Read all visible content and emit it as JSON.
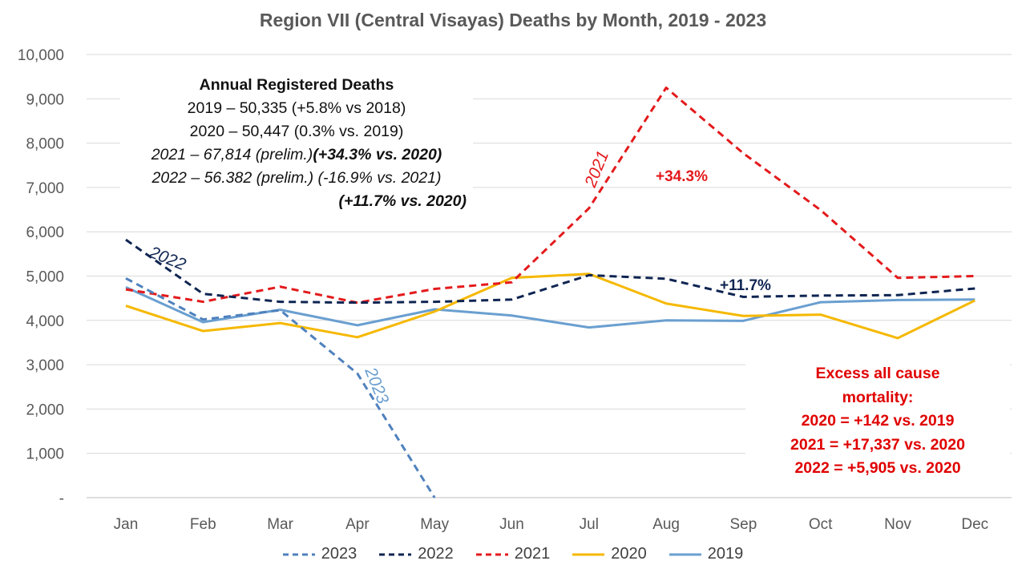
{
  "chart_data": {
    "type": "line",
    "title": "Region VII (Central Visayas) Deaths by Month, 2019 - 2023",
    "xlabel": "",
    "ylabel": "",
    "categories": [
      "Jan",
      "Feb",
      "Mar",
      "Apr",
      "May",
      "Jun",
      "Jul",
      "Aug",
      "Sep",
      "Oct",
      "Nov",
      "Dec"
    ],
    "y_ticks": [
      "-",
      "1,000",
      "2,000",
      "3,000",
      "4,000",
      "5,000",
      "6,000",
      "7,000",
      "8,000",
      "9,000",
      "10,000"
    ],
    "ylim": [
      0,
      10000
    ],
    "grid": true,
    "legend_position": "bottom",
    "series": [
      {
        "name": "2023",
        "color": "#4f81bd",
        "dash": true,
        "values": [
          4950,
          4020,
          4230,
          2800,
          0,
          null,
          null,
          null,
          null,
          null,
          null,
          null
        ]
      },
      {
        "name": "2022",
        "color": "#0f2552",
        "dash": true,
        "values": [
          5820,
          4600,
          4420,
          4400,
          4420,
          4470,
          5020,
          4940,
          4530,
          4560,
          4570,
          4720
        ]
      },
      {
        "name": "2021",
        "color": "#e31a1c",
        "dash": true,
        "values": [
          4700,
          4420,
          4760,
          4400,
          4710,
          4860,
          6530,
          9250,
          7770,
          6490,
          4960,
          5000
        ]
      },
      {
        "name": "2020",
        "color": "#f5b800",
        "dash": false,
        "values": [
          4330,
          3760,
          3940,
          3620,
          4200,
          4960,
          5050,
          4380,
          4100,
          4130,
          3600,
          4450
        ]
      },
      {
        "name": "2019",
        "color": "#6a9fd0",
        "dash": false,
        "values": [
          4750,
          3960,
          4240,
          3890,
          4250,
          4110,
          3840,
          4000,
          3990,
          4410,
          4460,
          4470
        ]
      }
    ],
    "labels": [
      {
        "text": "2022",
        "color": "#0f2552"
      },
      {
        "text": "2023",
        "color": "#6a9fd0"
      },
      {
        "text": "2021",
        "color": "#e31a1c"
      },
      {
        "text": "+34.3%",
        "color": "#e31a1c"
      },
      {
        "text": "+11.7%",
        "color": "#0f2552"
      }
    ]
  },
  "annotation": {
    "heading": "Annual Registered Deaths",
    "line1": "2019 – 50,335 (+5.8% vs 2018)",
    "line2": "2020 – 50,447 (0.3% vs. 2019)",
    "line3a": "2021 – 67,814 (prelim.)",
    "line3b": "(+34.3% vs. 2020)",
    "line4": "2022 – 56.382 (prelim.) (-16.9% vs. 2021)",
    "line5": "(+11.7% vs. 2020)"
  },
  "excess": {
    "line1": "Excess all cause",
    "line2": "mortality:",
    "line3": "2020 = +142 vs. 2019",
    "line4": "2021 = +17,337 vs. 2020",
    "line5": "2022 = +5,905 vs. 2020"
  }
}
